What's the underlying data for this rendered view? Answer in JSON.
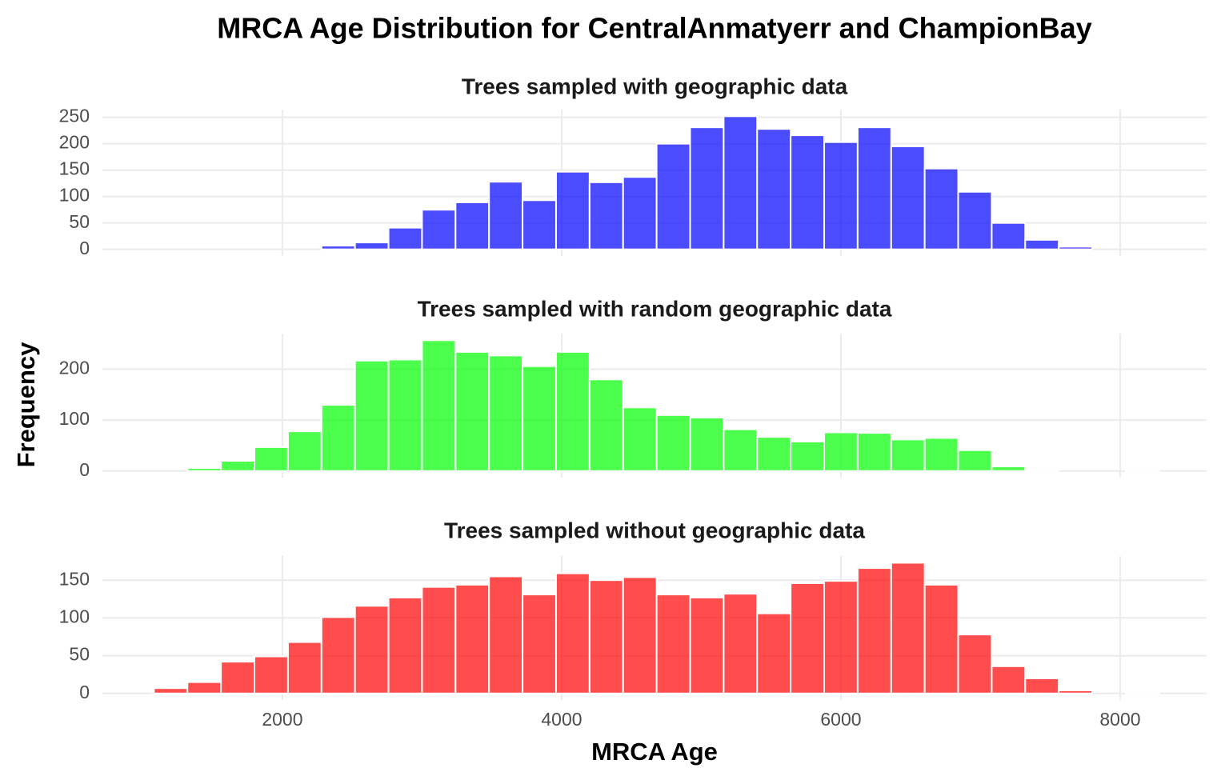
{
  "title": "MRCA Age Distribution for CentralAnmatyerr and ChampionBay",
  "xlabel": "MRCA Age",
  "ylabel": "Frequency",
  "chart_data": [
    {
      "type": "histogram",
      "title": "Trees sampled with geographic data",
      "color": "#0000ff",
      "bins": [
        1080,
        1320,
        1560,
        1800,
        2040,
        2280,
        2520,
        2760,
        3000,
        3240,
        3480,
        3720,
        3960,
        4200,
        4440,
        4680,
        4920,
        5160,
        5400,
        5640,
        5880,
        6120,
        6360,
        6600,
        6840,
        7080,
        7320,
        7560,
        7800,
        8040,
        8280
      ],
      "values": [
        0,
        0,
        0,
        0,
        0,
        7,
        13,
        41,
        75,
        89,
        128,
        93,
        147,
        127,
        137,
        200,
        231,
        252,
        228,
        216,
        203,
        231,
        195,
        153,
        109,
        50,
        18,
        5,
        0,
        0
      ],
      "xlim": [
        711,
        8619
      ],
      "xticks": [
        2000,
        4000,
        6000,
        8000
      ],
      "ylim": [
        -12.6,
        264.6
      ],
      "yticks": [
        0,
        50,
        100,
        150,
        200,
        250
      ],
      "grid": true
    },
    {
      "type": "histogram",
      "title": "Trees sampled with random geographic data",
      "color": "#00ff00",
      "bins": [
        1080,
        1320,
        1560,
        1800,
        2040,
        2280,
        2520,
        2760,
        3000,
        3240,
        3480,
        3720,
        3960,
        4200,
        4440,
        4680,
        4920,
        5160,
        5400,
        5640,
        5880,
        6120,
        6360,
        6600,
        6840,
        7080,
        7320,
        7560,
        7800,
        8040,
        8280
      ],
      "values": [
        0,
        6,
        20,
        47,
        78,
        130,
        217,
        219,
        257,
        234,
        227,
        206,
        234,
        180,
        125,
        110,
        105,
        82,
        67,
        58,
        76,
        75,
        62,
        65,
        41,
        9,
        2,
        0,
        0,
        1
      ],
      "xlim": [
        711,
        8619
      ],
      "xticks": [
        2000,
        4000,
        6000,
        8000
      ],
      "ylim": [
        -12.9,
        270
      ],
      "yticks": [
        0,
        100,
        200
      ],
      "grid": true
    },
    {
      "type": "histogram",
      "title": "Trees sampled without geographic data",
      "color": "#ff0000",
      "bins": [
        1080,
        1320,
        1560,
        1800,
        2040,
        2280,
        2520,
        2760,
        3000,
        3240,
        3480,
        3720,
        3960,
        4200,
        4440,
        4680,
        4920,
        5160,
        5400,
        5640,
        5880,
        6120,
        6360,
        6600,
        6840,
        7080,
        7320,
        7560,
        7800,
        8040,
        8280
      ],
      "values": [
        7,
        15,
        42,
        49,
        68,
        101,
        116,
        127,
        141,
        144,
        155,
        131,
        159,
        150,
        154,
        131,
        127,
        132,
        106,
        146,
        149,
        166,
        173,
        144,
        78,
        36,
        20,
        4,
        0,
        1
      ],
      "xlim": [
        711,
        8619
      ],
      "xticks": [
        2000,
        4000,
        6000,
        8000
      ],
      "ylim": [
        -8.7,
        182
      ],
      "yticks": [
        0,
        50,
        100,
        150
      ],
      "grid": true
    }
  ]
}
